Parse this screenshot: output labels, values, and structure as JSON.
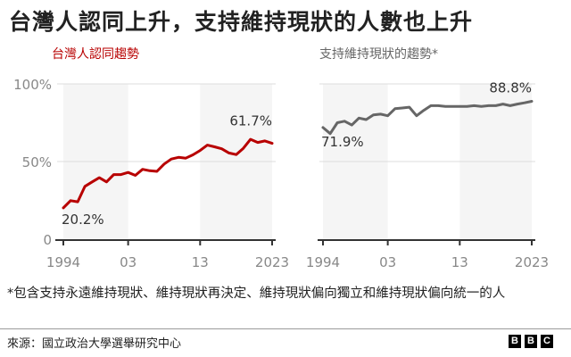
{
  "title": "台灣人認同上升，支持維持現狀的人數也上升",
  "footnote": "*包含支持永遠維持現狀、維持現狀再決定、維持現狀偏向獨立和維持現狀偏向統一的人",
  "source": "來源：國立政治大學選舉研究中心",
  "logo": [
    "B",
    "B",
    "C"
  ],
  "colors": {
    "left_series": "#b80000",
    "right_series": "#666666",
    "band": "#f5f5f5",
    "grid": "#dddddd",
    "axis": "#333333",
    "tick_label": "#888888"
  },
  "chart_data": [
    {
      "type": "line",
      "title": "台灣人認同趨勢",
      "xlabel": "",
      "ylabel": "",
      "ylim": [
        0,
        100
      ],
      "yticks": [
        "0",
        "50%",
        "100%"
      ],
      "xticks": [
        "1994",
        "03",
        "13",
        "2023"
      ],
      "grid": true,
      "shaded_bands": [
        [
          1994,
          2003
        ],
        [
          2013,
          2023
        ]
      ],
      "annotations": [
        {
          "label": "20.2%",
          "x": 1994
        },
        {
          "label": "61.7%",
          "x": 2023
        }
      ],
      "x": [
        1994,
        1995,
        1996,
        1997,
        1998,
        1999,
        2000,
        2001,
        2002,
        2003,
        2004,
        2005,
        2006,
        2007,
        2008,
        2009,
        2010,
        2011,
        2012,
        2013,
        2014,
        2015,
        2016,
        2017,
        2018,
        2019,
        2020,
        2021,
        2022,
        2023
      ],
      "series": [
        {
          "name": "台灣人認同",
          "values": [
            20.2,
            24.8,
            24.1,
            34.0,
            36.9,
            39.6,
            36.9,
            41.6,
            41.6,
            43.0,
            41.1,
            45.0,
            44.1,
            43.7,
            48.4,
            51.6,
            52.7,
            52.2,
            54.3,
            57.1,
            60.6,
            59.5,
            58.2,
            55.5,
            54.5,
            58.5,
            64.3,
            62.3,
            63.3,
            61.7
          ]
        }
      ]
    },
    {
      "type": "line",
      "title": "支持維持現狀的趨勢*",
      "xlabel": "",
      "ylabel": "",
      "ylim": [
        0,
        100
      ],
      "yticks": [
        "0",
        "50%",
        "100%"
      ],
      "xticks": [
        "1994",
        "03",
        "13",
        "2023"
      ],
      "grid": true,
      "shaded_bands": [
        [
          1994,
          2003
        ],
        [
          2013,
          2023
        ]
      ],
      "annotations": [
        {
          "label": "71.9%",
          "x": 1994
        },
        {
          "label": "88.8%",
          "x": 2023
        }
      ],
      "x": [
        1994,
        1995,
        1996,
        1997,
        1998,
        1999,
        2000,
        2001,
        2002,
        2003,
        2004,
        2005,
        2006,
        2007,
        2008,
        2009,
        2010,
        2011,
        2012,
        2013,
        2014,
        2015,
        2016,
        2017,
        2018,
        2019,
        2020,
        2021,
        2022,
        2023
      ],
      "series": [
        {
          "name": "支持維持現狀",
          "values": [
            71.9,
            68.0,
            75.0,
            76.0,
            73.5,
            78.0,
            77.0,
            80.0,
            80.5,
            79.5,
            84.0,
            84.5,
            85.0,
            79.5,
            83.0,
            86.0,
            86.0,
            85.5,
            85.5,
            85.5,
            85.5,
            86.0,
            85.5,
            86.0,
            86.0,
            87.0,
            86.0,
            87.0,
            87.8,
            88.8
          ]
        }
      ]
    }
  ]
}
